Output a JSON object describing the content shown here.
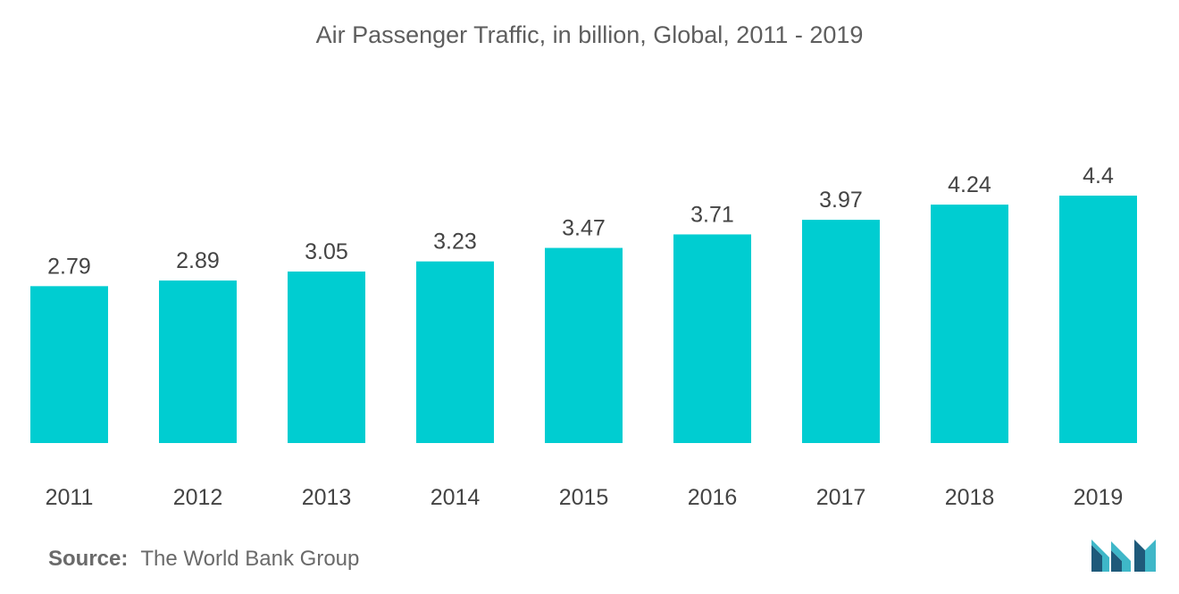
{
  "chart_data": {
    "type": "bar",
    "title": "Air Passenger Traffic, in billion, Global, 2011 - 2019",
    "xlabel": "",
    "ylabel": "",
    "categories": [
      "2011",
      "2012",
      "2013",
      "2014",
      "2015",
      "2016",
      "2017",
      "2018",
      "2019"
    ],
    "values": [
      2.79,
      2.89,
      3.05,
      3.23,
      3.47,
      3.71,
      3.97,
      4.24,
      4.4
    ],
    "value_labels": [
      "2.79",
      "2.89",
      "3.05",
      "3.23",
      "3.47",
      "3.71",
      "3.97",
      "4.24",
      "4.4"
    ],
    "ylim": [
      0,
      4.4
    ],
    "grid": false,
    "legend": "none",
    "bar_color": "#00cdd1"
  },
  "source": {
    "label": "Source:",
    "text": "The World Bank Group"
  },
  "logo": {
    "icon": "mordor-intelligence-logo-icon",
    "color_dark": "#1f5a7a",
    "color_light": "#3fb7c8"
  }
}
